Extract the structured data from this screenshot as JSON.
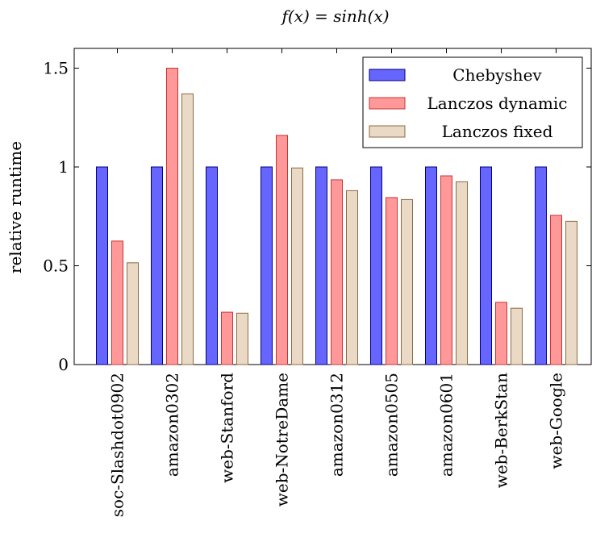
{
  "chart_data": {
    "type": "bar",
    "title": "f(x) = sinh(x)",
    "xlabel": "",
    "ylabel": "relative runtime",
    "ylim": [
      0,
      1.6
    ],
    "yticks": [
      {
        "value": 0,
        "label": "0"
      },
      {
        "value": 0.5,
        "label": "0.5"
      },
      {
        "value": 1,
        "label": "1"
      },
      {
        "value": 1.5,
        "label": "1.5"
      }
    ],
    "categories": [
      "soc-Slashdot0902",
      "amazon0302",
      "web-Stanford",
      "web-NotreDame",
      "amazon0312",
      "amazon0505",
      "amazon0601",
      "web-BerkStan",
      "web-Google"
    ],
    "series": [
      {
        "name": "Chebyshev",
        "color": "#6666ff",
        "stroke": "#000080",
        "values": [
          1,
          1,
          1,
          1,
          1,
          1,
          1,
          1,
          1
        ]
      },
      {
        "name": "Lanczos dynamic",
        "color": "#ff9999",
        "stroke": "#cc3333",
        "values": [
          0.625,
          1.5,
          0.265,
          1.16,
          0.935,
          0.845,
          0.955,
          0.315,
          0.755
        ]
      },
      {
        "name": "Lanczos fixed",
        "color": "#ead9c4",
        "stroke": "#8b6b45",
        "values": [
          0.515,
          1.37,
          0.26,
          0.995,
          0.88,
          0.835,
          0.925,
          0.285,
          0.725
        ]
      }
    ],
    "legend_position": "top-right",
    "grid": false
  }
}
